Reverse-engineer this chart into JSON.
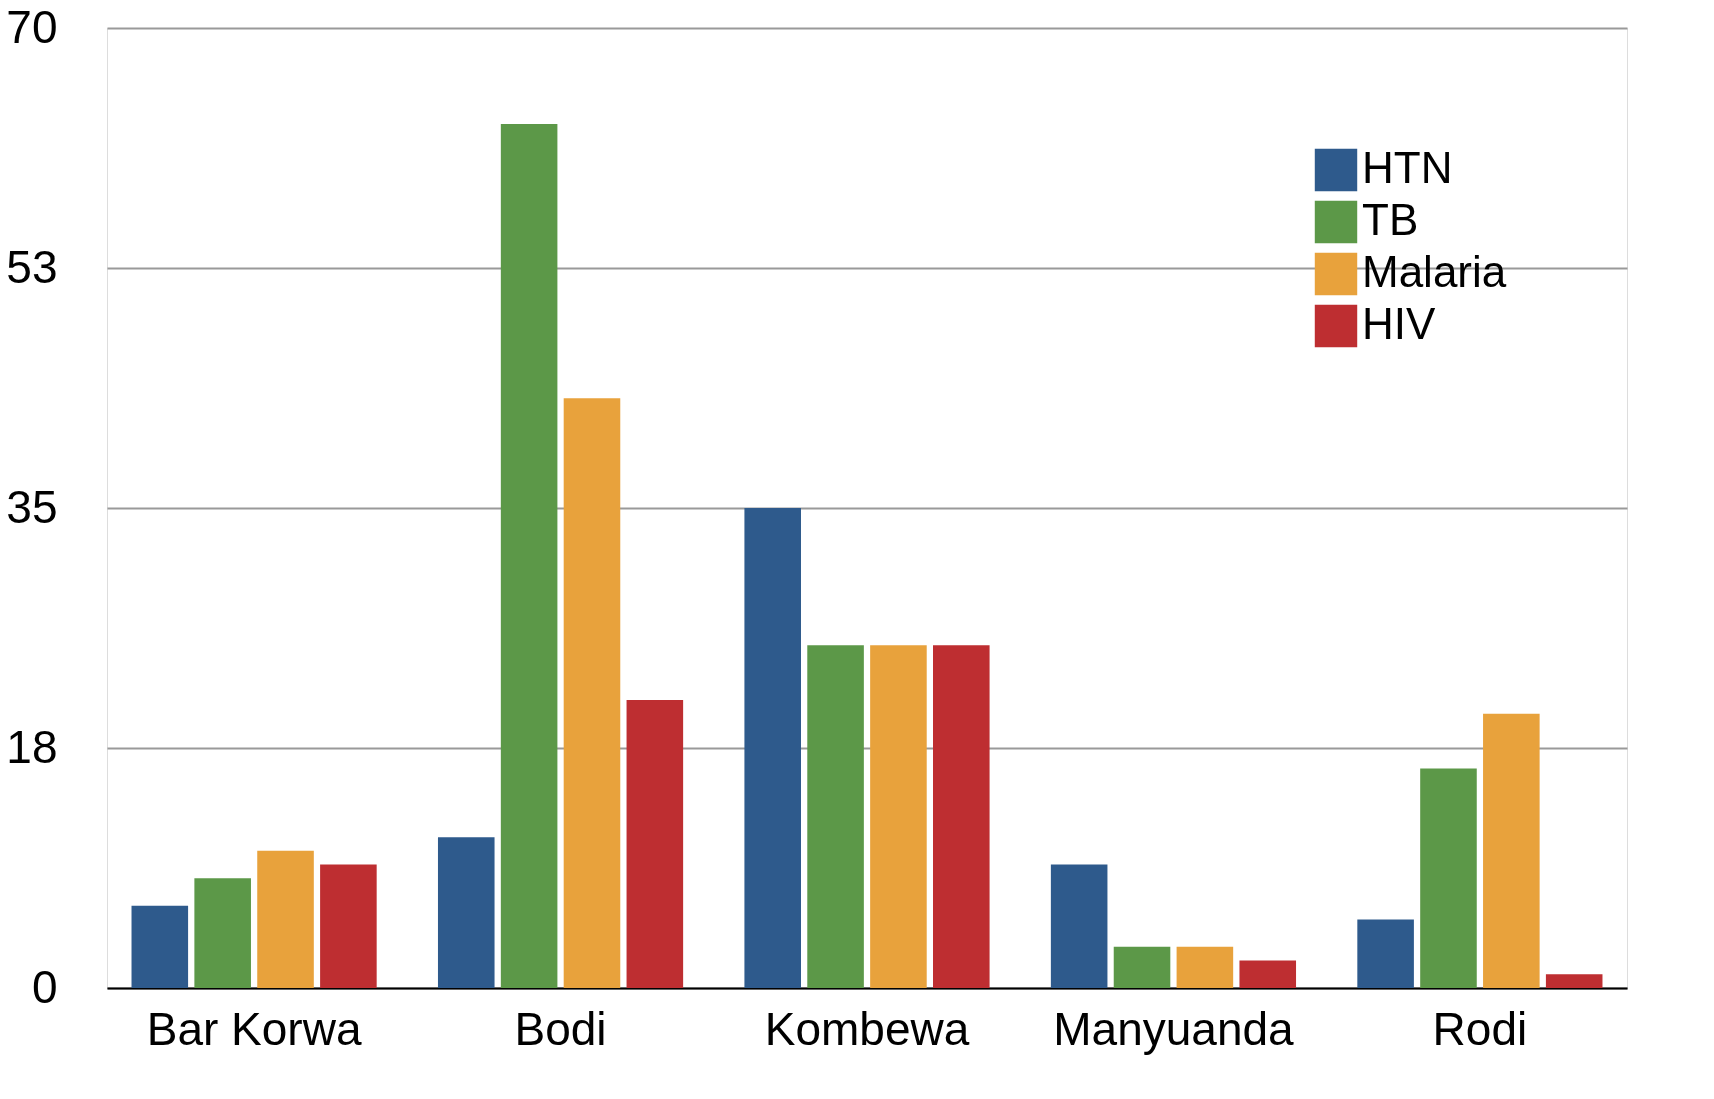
{
  "chart_data": {
    "type": "bar",
    "categories": [
      "Bar Korwa",
      "Bodi",
      "Kombewa",
      "Manyuanda",
      "Rodi"
    ],
    "series": [
      {
        "name": "HTN",
        "color": "#2e5a8c",
        "values": [
          6,
          11,
          35,
          9,
          5
        ]
      },
      {
        "name": "TB",
        "color": "#5c9848",
        "values": [
          8,
          63,
          25,
          3,
          16
        ]
      },
      {
        "name": "Malaria",
        "color": "#e8a23c",
        "values": [
          10,
          43,
          25,
          3,
          20
        ]
      },
      {
        "name": "HIV",
        "color": "#be2e31",
        "values": [
          9,
          21,
          25,
          2,
          1
        ]
      }
    ],
    "ylim": [
      0,
      70
    ],
    "yticks": [
      0,
      {
        "value": 17.5,
        "label": "18"
      },
      35,
      {
        "value": 52.5,
        "label": "53"
      },
      70
    ],
    "grid": "y",
    "legend": "top right"
  }
}
